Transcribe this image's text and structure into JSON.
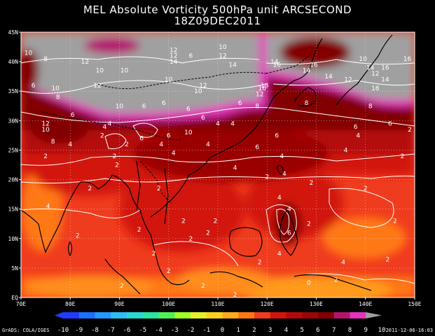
{
  "title": {
    "line1": "MEL Absolute Vorticity 500hPa unit ARCSECOND",
    "line2": "18Z09DEC2011"
  },
  "axes": {
    "lon_labels": [
      "70E",
      "80E",
      "90E",
      "100E",
      "110E",
      "120E",
      "130E",
      "140E",
      "150E"
    ],
    "lat_labels": [
      "EQ",
      "5N",
      "10N",
      "15N",
      "20N",
      "25N",
      "30N",
      "35N",
      "40N",
      "45N"
    ]
  },
  "colorbar": {
    "labels": [
      "-10",
      "-9",
      "-8",
      "-7",
      "-6",
      "-5",
      "-4",
      "-3",
      "-2",
      "-1",
      "0",
      "1",
      "2",
      "3",
      "4",
      "5",
      "6",
      "7",
      "8",
      "9",
      "10"
    ],
    "colors": [
      "#1e3cff",
      "#1e6eff",
      "#2896ff",
      "#2cbef0",
      "#28d7d2",
      "#28e6a0",
      "#50f05a",
      "#a0ff28",
      "#e6f028",
      "#ffd21e",
      "#ffaa1e",
      "#ff7814",
      "#f03c1e",
      "#d2140a",
      "#b40a0a",
      "#9b0505",
      "#820000",
      "#b4146e",
      "#e632be",
      "#a0a0a0"
    ]
  },
  "footer": {
    "left": "GrADS: COLA/IGES",
    "right": "2011-12-06-16:03"
  },
  "contour_labels": [
    {
      "t": "10",
      "lon": 71.5,
      "lat": 41.5
    },
    {
      "t": "8",
      "lon": 75.0,
      "lat": 40.5
    },
    {
      "t": "10",
      "lon": 77.0,
      "lat": 35.5
    },
    {
      "t": "6",
      "lon": 72.5,
      "lat": 36.0
    },
    {
      "t": "12",
      "lon": 83.0,
      "lat": 40.0
    },
    {
      "t": "10",
      "lon": 86.0,
      "lat": 38.5
    },
    {
      "t": "10",
      "lon": 91.0,
      "lat": 38.5
    },
    {
      "t": "12",
      "lon": 85.5,
      "lat": 36.0
    },
    {
      "t": "12",
      "lon": 101.0,
      "lat": 42.0
    },
    {
      "t": "12",
      "lon": 101.0,
      "lat": 41.0
    },
    {
      "t": "14",
      "lon": 101.0,
      "lat": 40.0
    },
    {
      "t": "6",
      "lon": 104.5,
      "lat": 41.0
    },
    {
      "t": "10",
      "lon": 111.0,
      "lat": 42.5
    },
    {
      "t": "12",
      "lon": 111.0,
      "lat": 41.0
    },
    {
      "t": "14",
      "lon": 113.0,
      "lat": 39.5
    },
    {
      "t": "10",
      "lon": 100.0,
      "lat": 37.0
    },
    {
      "t": "12",
      "lon": 107.0,
      "lat": 36.0
    },
    {
      "t": "10",
      "lon": 106.0,
      "lat": 35.0
    },
    {
      "t": "6",
      "lon": 95.0,
      "lat": 32.5
    },
    {
      "t": "6",
      "lon": 99.0,
      "lat": 33.0
    },
    {
      "t": "10",
      "lon": 90.0,
      "lat": 32.5
    },
    {
      "t": "6",
      "lon": 104.0,
      "lat": 32.0
    },
    {
      "t": "6",
      "lon": 107.0,
      "lat": 30.5
    },
    {
      "t": "4",
      "lon": 110.0,
      "lat": 29.5
    },
    {
      "t": "4",
      "lon": 113.0,
      "lat": 29.5
    },
    {
      "t": "6",
      "lon": 114.5,
      "lat": 33.0
    },
    {
      "t": "8",
      "lon": 118.0,
      "lat": 32.5
    },
    {
      "t": "12",
      "lon": 118.5,
      "lat": 34.5
    },
    {
      "t": "16",
      "lon": 119.0,
      "lat": 35.5
    },
    {
      "t": "18",
      "lon": 119.5,
      "lat": 36.0
    },
    {
      "t": "14",
      "lon": 121.5,
      "lat": 40.0
    },
    {
      "t": "16",
      "lon": 122.0,
      "lat": 39.5
    },
    {
      "t": "14",
      "lon": 128.0,
      "lat": 38.5
    },
    {
      "t": "16",
      "lon": 129.5,
      "lat": 39.5
    },
    {
      "t": "14",
      "lon": 132.5,
      "lat": 37.5
    },
    {
      "t": "12",
      "lon": 136.5,
      "lat": 37.0
    },
    {
      "t": "10",
      "lon": 139.5,
      "lat": 40.5
    },
    {
      "t": "14",
      "lon": 141.0,
      "lat": 39.0
    },
    {
      "t": "12",
      "lon": 142.0,
      "lat": 38.0
    },
    {
      "t": "16",
      "lon": 144.0,
      "lat": 39.0
    },
    {
      "t": "14",
      "lon": 144.0,
      "lat": 37.0
    },
    {
      "t": "16",
      "lon": 148.5,
      "lat": 40.5
    },
    {
      "t": "18",
      "lon": 142.0,
      "lat": 35.5
    },
    {
      "t": "8",
      "lon": 141.0,
      "lat": 32.5
    },
    {
      "t": "6",
      "lon": 145.0,
      "lat": 29.5
    },
    {
      "t": "6",
      "lon": 138.0,
      "lat": 29.0
    },
    {
      "t": "4",
      "lon": 138.5,
      "lat": 27.5
    },
    {
      "t": "2",
      "lon": 149.0,
      "lat": 28.5
    },
    {
      "t": "8",
      "lon": 128.0,
      "lat": 33.0
    },
    {
      "t": "6",
      "lon": 122.0,
      "lat": 27.5
    },
    {
      "t": "6",
      "lon": 118.0,
      "lat": 25.5
    },
    {
      "t": "4",
      "lon": 123.0,
      "lat": 24.0
    },
    {
      "t": "4",
      "lon": 108.0,
      "lat": 26.0
    },
    {
      "t": "4",
      "lon": 113.5,
      "lat": 22.0
    },
    {
      "t": "4",
      "lon": 123.5,
      "lat": 21.0
    },
    {
      "t": "4",
      "lon": 136.0,
      "lat": 25.0
    },
    {
      "t": "2",
      "lon": 147.5,
      "lat": 24.0
    },
    {
      "t": "2",
      "lon": 129.0,
      "lat": 19.5
    },
    {
      "t": "2",
      "lon": 120.0,
      "lat": 20.5
    },
    {
      "t": "2",
      "lon": 140.0,
      "lat": 18.5
    },
    {
      "t": "2",
      "lon": 146.0,
      "lat": 13.0
    },
    {
      "t": "2",
      "lon": 144.5,
      "lat": 6.5
    },
    {
      "t": "4",
      "lon": 122.5,
      "lat": 17.0
    },
    {
      "t": "4",
      "lon": 124.5,
      "lat": 15.0
    },
    {
      "t": "6",
      "lon": 124.5,
      "lat": 11.0
    },
    {
      "t": "4",
      "lon": 122.5,
      "lat": 7.5
    },
    {
      "t": "2",
      "lon": 128.5,
      "lat": 12.5
    },
    {
      "t": "0",
      "lon": 128.5,
      "lat": 2.5
    },
    {
      "t": "2",
      "lon": 134.0,
      "lat": 3.0
    },
    {
      "t": "4",
      "lon": 135.5,
      "lat": 6.0
    },
    {
      "t": "2",
      "lon": 118.5,
      "lat": 6.0
    },
    {
      "t": "2",
      "lon": 113.5,
      "lat": 0.5
    },
    {
      "t": "2",
      "lon": 107.0,
      "lat": 2.0
    },
    {
      "t": "2",
      "lon": 100.0,
      "lat": 4.5
    },
    {
      "t": "2",
      "lon": 103.0,
      "lat": 13.0
    },
    {
      "t": "2",
      "lon": 109.5,
      "lat": 13.0
    },
    {
      "t": "2",
      "lon": 104.5,
      "lat": 10.0
    },
    {
      "t": "2",
      "lon": 108.0,
      "lat": 11.0
    },
    {
      "t": "2",
      "lon": 94.0,
      "lat": 11.5
    },
    {
      "t": "2",
      "lon": 98.0,
      "lat": 18.5
    },
    {
      "t": "2",
      "lon": 84.0,
      "lat": 18.5
    },
    {
      "t": "4",
      "lon": 75.5,
      "lat": 15.5
    },
    {
      "t": "2",
      "lon": 81.5,
      "lat": 10.5
    },
    {
      "t": "2",
      "lon": 90.5,
      "lat": 2.0
    },
    {
      "t": "2",
      "lon": 97.0,
      "lat": 7.5
    },
    {
      "t": "2",
      "lon": 75.0,
      "lat": 24.0
    },
    {
      "t": "2",
      "lon": 89.5,
      "lat": 22.5
    },
    {
      "t": "4",
      "lon": 80.0,
      "lat": 26.0
    },
    {
      "t": "2",
      "lon": 86.5,
      "lat": 27.5
    },
    {
      "t": "2",
      "lon": 89.0,
      "lat": 24.0
    },
    {
      "t": "2",
      "lon": 91.5,
      "lat": 26.0
    },
    {
      "t": "6",
      "lon": 94.5,
      "lat": 27.0
    },
    {
      "t": "4",
      "lon": 98.5,
      "lat": 26.0
    },
    {
      "t": "4",
      "lon": 101.0,
      "lat": 24.5
    },
    {
      "t": "6",
      "lon": 100.0,
      "lat": 27.5
    },
    {
      "t": "10",
      "lon": 104.0,
      "lat": 28.0
    },
    {
      "t": "8",
      "lon": 76.5,
      "lat": 26.5
    },
    {
      "t": "12",
      "lon": 75.0,
      "lat": 29.5
    },
    {
      "t": "10",
      "lon": 75.0,
      "lat": 28.5
    },
    {
      "t": "8",
      "lon": 77.5,
      "lat": 34.0
    },
    {
      "t": "6",
      "lon": 80.5,
      "lat": 31.0
    },
    {
      "t": "4",
      "lon": 88.0,
      "lat": 29.5
    },
    {
      "t": "4",
      "lon": 87.0,
      "lat": 29.0
    }
  ]
}
